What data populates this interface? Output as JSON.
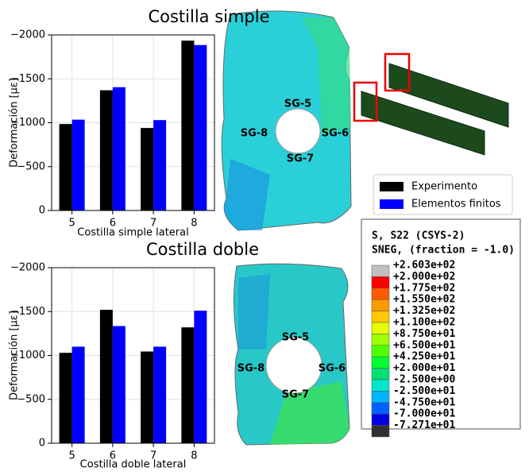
{
  "chart_data": [
    {
      "type": "bar",
      "title": "Costilla simple",
      "x_label": "Costilla simple lateral",
      "y_label": "Deformación [με]",
      "categories": [
        "5",
        "6",
        "7",
        "8"
      ],
      "series": [
        {
          "name": "Experimento",
          "color": "#000000",
          "values": [
            -985,
            -1370,
            -940,
            -1935
          ]
        },
        {
          "name": "Elementos finitos",
          "color": "#0000ff",
          "values": [
            -1035,
            -1405,
            -1030,
            -1885
          ]
        }
      ],
      "ylim": [
        0,
        -2000
      ],
      "yticks": [
        {
          "value": -2000,
          "label": "−2000"
        },
        {
          "value": -1500,
          "label": "−1500"
        },
        {
          "value": -1000,
          "label": "−1000"
        },
        {
          "value": -500,
          "label": "−500"
        },
        0
      ],
      "grid": true
    },
    {
      "type": "bar",
      "title": "Costilla doble",
      "x_label": "Costilla doble lateral",
      "y_label": "Deformación [με]",
      "categories": [
        "5",
        "6",
        "7",
        "8"
      ],
      "series": [
        {
          "name": "Experimento",
          "color": "#000000",
          "values": [
            -1030,
            -1520,
            -1045,
            -1320
          ]
        },
        {
          "name": "Elementos finitos",
          "color": "#0000ff",
          "values": [
            -1100,
            -1335,
            -1100,
            -1510
          ]
        }
      ],
      "ylim": [
        0,
        -2000
      ],
      "yticks": [
        {
          "value": -2000,
          "label": "−2000"
        },
        {
          "value": -1500,
          "label": "−1500"
        },
        {
          "value": -1000,
          "label": "−1000"
        },
        {
          "value": -500,
          "label": "−500"
        },
        0
      ],
      "grid": true
    }
  ],
  "fea_images": [
    {
      "labels": [
        "SG-5",
        "SG-6",
        "SG-7",
        "SG-8"
      ]
    },
    {
      "labels": [
        "SG-5",
        "SG-6",
        "SG-7",
        "SG-8"
      ]
    }
  ],
  "contour_legend": {
    "title": [
      "S, S22 (CSYS-2)",
      "SNEG, (fraction = -1.0)"
    ],
    "labels": [
      "+2.603e+02",
      "+2.000e+02",
      "+1.775e+02",
      "+1.550e+02",
      "+1.325e+02",
      "+1.100e+02",
      "+8.750e+01",
      "+6.500e+01",
      "+4.250e+01",
      "+2.000e+01",
      "-2.500e+00",
      "-2.500e+01",
      "-4.750e+01",
      "-7.000e+01",
      "-7.271e+01"
    ],
    "colors": [
      "#c0c0c0",
      "#ff0000",
      "#ff5a00",
      "#ff9900",
      "#ffc800",
      "#e6ff00",
      "#a0ff00",
      "#50ff00",
      "#00ff30",
      "#00e070",
      "#00e6c8",
      "#00b4ff",
      "#0060ff",
      "#0000e0",
      "#303030"
    ]
  }
}
